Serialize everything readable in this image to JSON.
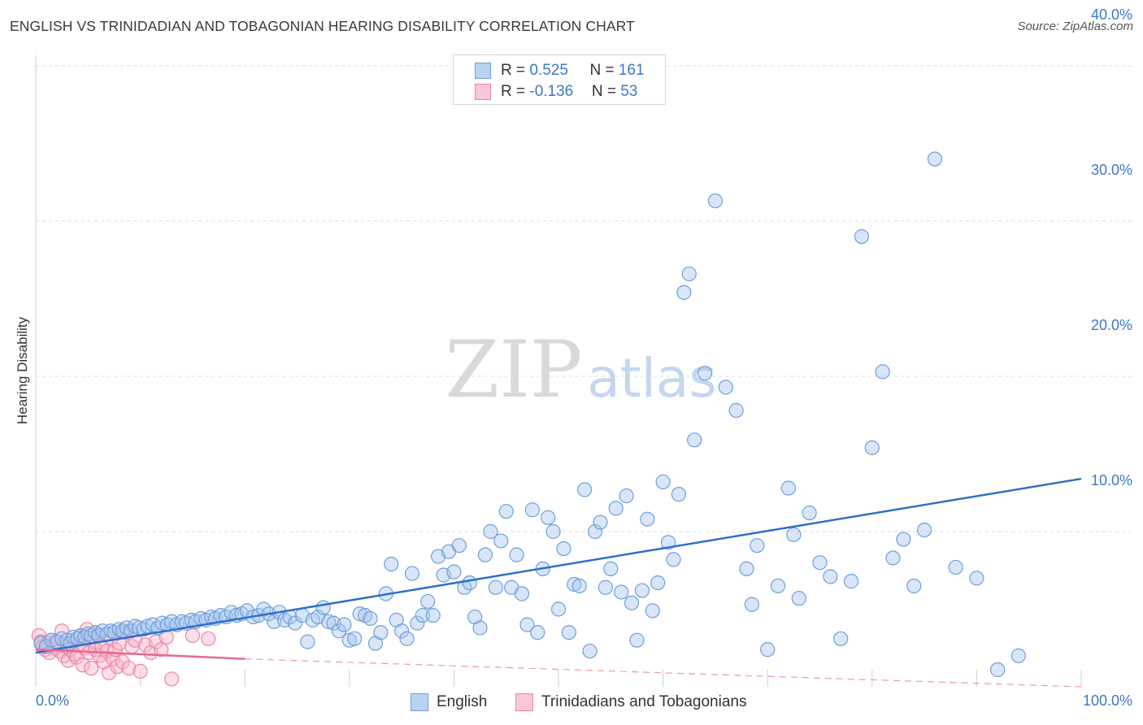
{
  "title": "ENGLISH VS TRINIDADIAN AND TOBAGONIAN HEARING DISABILITY CORRELATION CHART",
  "source": "Source: ZipAtlas.com",
  "watermark": {
    "zip": "ZIP",
    "atlas": "atlas"
  },
  "legend": {
    "rows": [
      {
        "r_label": "R = ",
        "r_value": "0.525",
        "n_label": "N = ",
        "n_value": "161"
      },
      {
        "r_label": "R = ",
        "r_value": "-0.136",
        "n_label": "N = ",
        "n_value": "53"
      }
    ]
  },
  "colors": {
    "english_fill": "#a9c8ef",
    "english_stroke": "#6f9fdc",
    "english_line": "#2f6fcb",
    "trin_fill": "#f7b6c9",
    "trin_stroke": "#ec86a6",
    "trin_line": "#e8698f",
    "tick_text": "#3b78c9",
    "grid": "#dcdcdc"
  },
  "chart_data": {
    "type": "scatter",
    "title": "ENGLISH VS TRINIDADIAN AND TOBAGONIAN HEARING DISABILITY CORRELATION CHART",
    "xlabel": "",
    "ylabel": "Hearing Disability",
    "xlim": [
      0,
      100
    ],
    "ylim": [
      0,
      42
    ],
    "x_tick_labels": [
      "0.0%",
      "100.0%"
    ],
    "y_ticks": [
      10,
      20,
      30,
      40
    ],
    "y_tick_labels": [
      "10.0%",
      "20.0%",
      "30.0%",
      "40.0%"
    ],
    "series": [
      {
        "name": "English",
        "trendline": {
          "x": [
            0,
            100
          ],
          "y": [
            2.2,
            13.4
          ]
        },
        "points": [
          [
            0.5,
            2.8
          ],
          [
            1.0,
            2.6
          ],
          [
            1.5,
            3.0
          ],
          [
            2.0,
            2.9
          ],
          [
            2.5,
            3.1
          ],
          [
            3.0,
            3.0
          ],
          [
            3.3,
            2.8
          ],
          [
            3.6,
            3.2
          ],
          [
            4.0,
            3.1
          ],
          [
            4.3,
            3.3
          ],
          [
            4.7,
            3.2
          ],
          [
            5.0,
            3.4
          ],
          [
            5.3,
            3.3
          ],
          [
            5.7,
            3.5
          ],
          [
            6.0,
            3.3
          ],
          [
            6.4,
            3.6
          ],
          [
            6.8,
            3.4
          ],
          [
            7.2,
            3.6
          ],
          [
            7.5,
            3.5
          ],
          [
            8.0,
            3.7
          ],
          [
            8.3,
            3.6
          ],
          [
            8.7,
            3.8
          ],
          [
            9.1,
            3.6
          ],
          [
            9.5,
            3.9
          ],
          [
            9.9,
            3.8
          ],
          [
            10.3,
            3.7
          ],
          [
            10.7,
            3.9
          ],
          [
            11.2,
            4.0
          ],
          [
            11.7,
            3.8
          ],
          [
            12.1,
            4.1
          ],
          [
            12.6,
            4.0
          ],
          [
            13.0,
            4.2
          ],
          [
            13.5,
            4.0
          ],
          [
            14.0,
            4.2
          ],
          [
            14.4,
            4.1
          ],
          [
            14.9,
            4.3
          ],
          [
            15.3,
            4.2
          ],
          [
            15.8,
            4.4
          ],
          [
            16.3,
            4.3
          ],
          [
            16.8,
            4.5
          ],
          [
            17.2,
            4.4
          ],
          [
            17.7,
            4.6
          ],
          [
            18.2,
            4.5
          ],
          [
            18.7,
            4.8
          ],
          [
            19.2,
            4.6
          ],
          [
            19.7,
            4.7
          ],
          [
            20.2,
            4.9
          ],
          [
            20.8,
            4.5
          ],
          [
            21.3,
            4.6
          ],
          [
            21.8,
            5.0
          ],
          [
            22.3,
            4.7
          ],
          [
            22.8,
            4.2
          ],
          [
            23.3,
            4.8
          ],
          [
            23.8,
            4.3
          ],
          [
            24.3,
            4.5
          ],
          [
            24.8,
            4.1
          ],
          [
            25.5,
            4.6
          ],
          [
            26.0,
            2.9
          ],
          [
            26.5,
            4.3
          ],
          [
            27.0,
            4.5
          ],
          [
            27.5,
            5.1
          ],
          [
            28.0,
            4.2
          ],
          [
            28.5,
            4.1
          ],
          [
            29.0,
            3.6
          ],
          [
            29.5,
            4.0
          ],
          [
            30.0,
            3.0
          ],
          [
            30.5,
            3.1
          ],
          [
            31.0,
            4.7
          ],
          [
            31.5,
            4.6
          ],
          [
            32.0,
            4.4
          ],
          [
            32.5,
            2.8
          ],
          [
            33.0,
            3.5
          ],
          [
            33.5,
            6.0
          ],
          [
            34.0,
            7.9
          ],
          [
            34.5,
            4.3
          ],
          [
            35.0,
            3.6
          ],
          [
            35.5,
            3.1
          ],
          [
            36.0,
            7.3
          ],
          [
            36.5,
            4.1
          ],
          [
            37.0,
            4.6
          ],
          [
            37.5,
            5.5
          ],
          [
            38.0,
            4.6
          ],
          [
            38.5,
            8.4
          ],
          [
            39.0,
            7.2
          ],
          [
            39.5,
            8.7
          ],
          [
            40.0,
            7.4
          ],
          [
            40.5,
            9.1
          ],
          [
            41.0,
            6.4
          ],
          [
            41.5,
            6.7
          ],
          [
            42.0,
            4.5
          ],
          [
            42.5,
            3.8
          ],
          [
            43.0,
            8.5
          ],
          [
            43.5,
            10.0
          ],
          [
            44.0,
            6.4
          ],
          [
            44.5,
            9.4
          ],
          [
            45.0,
            11.3
          ],
          [
            45.5,
            6.4
          ],
          [
            46.0,
            8.5
          ],
          [
            46.5,
            6.0
          ],
          [
            47.0,
            4.0
          ],
          [
            47.5,
            11.4
          ],
          [
            48.0,
            3.5
          ],
          [
            48.5,
            7.6
          ],
          [
            49.0,
            10.9
          ],
          [
            49.5,
            10.0
          ],
          [
            50.0,
            5.0
          ],
          [
            50.5,
            8.9
          ],
          [
            51.0,
            3.5
          ],
          [
            51.5,
            6.6
          ],
          [
            52.0,
            6.5
          ],
          [
            52.5,
            12.7
          ],
          [
            53.0,
            2.3
          ],
          [
            53.5,
            10.0
          ],
          [
            54.0,
            10.6
          ],
          [
            54.5,
            6.4
          ],
          [
            55.0,
            7.6
          ],
          [
            55.5,
            11.5
          ],
          [
            56.0,
            6.1
          ],
          [
            56.5,
            12.3
          ],
          [
            57.0,
            5.4
          ],
          [
            57.5,
            3.0
          ],
          [
            58.0,
            6.2
          ],
          [
            58.5,
            10.8
          ],
          [
            59.0,
            4.9
          ],
          [
            59.5,
            6.7
          ],
          [
            60.0,
            13.2
          ],
          [
            60.5,
            9.3
          ],
          [
            61.0,
            8.2
          ],
          [
            61.5,
            12.4
          ],
          [
            62.0,
            25.4
          ],
          [
            62.5,
            26.6
          ],
          [
            63.0,
            15.9
          ],
          [
            64.0,
            20.2
          ],
          [
            65.0,
            31.3
          ],
          [
            66.0,
            19.3
          ],
          [
            67.0,
            17.8
          ],
          [
            68.0,
            7.6
          ],
          [
            69.0,
            9.1
          ],
          [
            70.0,
            2.4
          ],
          [
            71.0,
            6.5
          ],
          [
            72.0,
            12.8
          ],
          [
            73.0,
            5.7
          ],
          [
            74.0,
            11.2
          ],
          [
            75.0,
            8.0
          ],
          [
            76.0,
            7.1
          ],
          [
            77.0,
            3.1
          ],
          [
            78.0,
            6.8
          ],
          [
            79.0,
            29.0
          ],
          [
            80.0,
            15.4
          ],
          [
            81.0,
            20.3
          ],
          [
            82.0,
            8.3
          ],
          [
            83.0,
            9.5
          ],
          [
            84.0,
            6.5
          ],
          [
            85.0,
            10.1
          ],
          [
            86.0,
            34.0
          ],
          [
            88.0,
            7.7
          ],
          [
            90.0,
            7.0
          ],
          [
            92.0,
            1.1
          ],
          [
            94.0,
            2.0
          ],
          [
            72.5,
            9.8
          ],
          [
            68.5,
            5.3
          ]
        ]
      },
      {
        "name": "Trinidadians and Tobagonians",
        "trendline": {
          "x": [
            0,
            20
          ],
          "y": [
            2.4,
            1.8
          ]
        },
        "trendline_extension": {
          "x": [
            20,
            100
          ],
          "y": [
            1.8,
            -0.7
          ]
        },
        "points": [
          [
            0.3,
            3.3
          ],
          [
            0.5,
            2.9
          ],
          [
            0.7,
            2.6
          ],
          [
            0.9,
            2.4
          ],
          [
            1.1,
            2.8
          ],
          [
            1.3,
            2.2
          ],
          [
            1.5,
            3.0
          ],
          [
            1.7,
            2.7
          ],
          [
            1.9,
            2.5
          ],
          [
            2.1,
            2.9
          ],
          [
            2.3,
            2.3
          ],
          [
            2.5,
            3.6
          ],
          [
            2.7,
            2.0
          ],
          [
            2.9,
            2.6
          ],
          [
            3.1,
            1.7
          ],
          [
            3.3,
            2.4
          ],
          [
            3.5,
            3.0
          ],
          [
            3.7,
            2.1
          ],
          [
            3.9,
            1.9
          ],
          [
            4.1,
            2.7
          ],
          [
            4.3,
            3.2
          ],
          [
            4.5,
            1.4
          ],
          [
            4.7,
            2.5
          ],
          [
            4.9,
            3.7
          ],
          [
            5.1,
            2.2
          ],
          [
            5.3,
            1.2
          ],
          [
            5.5,
            2.9
          ],
          [
            5.7,
            2.4
          ],
          [
            5.9,
            3.4
          ],
          [
            6.1,
            2.0
          ],
          [
            6.3,
            2.6
          ],
          [
            6.5,
            1.6
          ],
          [
            6.8,
            2.3
          ],
          [
            7.0,
            0.9
          ],
          [
            7.2,
            3.1
          ],
          [
            7.4,
            1.8
          ],
          [
            7.6,
            2.4
          ],
          [
            7.8,
            1.3
          ],
          [
            8.0,
            2.8
          ],
          [
            8.3,
            1.6
          ],
          [
            8.6,
            3.5
          ],
          [
            8.9,
            1.2
          ],
          [
            9.2,
            2.6
          ],
          [
            9.5,
            3.0
          ],
          [
            10.0,
            1.0
          ],
          [
            10.5,
            2.7
          ],
          [
            11.0,
            2.2
          ],
          [
            11.5,
            2.9
          ],
          [
            12.0,
            2.4
          ],
          [
            12.5,
            3.2
          ],
          [
            13.0,
            0.5
          ],
          [
            15.0,
            3.3
          ],
          [
            16.5,
            3.1
          ]
        ]
      }
    ]
  }
}
